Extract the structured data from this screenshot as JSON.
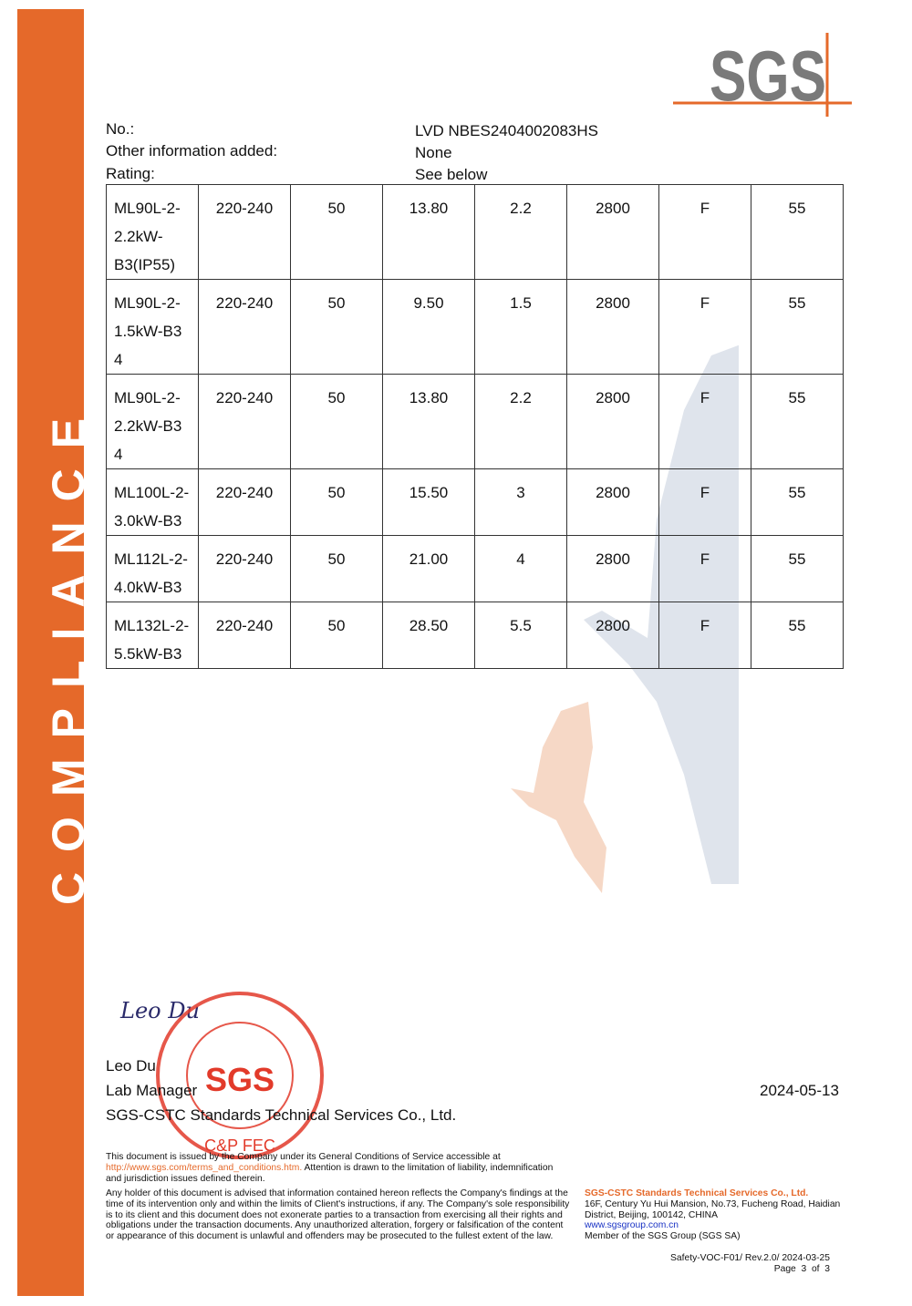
{
  "sidebar": {
    "text": "COMPLIANCE",
    "color": "#e5692a"
  },
  "logo": {
    "text": "SGS"
  },
  "header": {
    "no_label": "No.:",
    "no_value": "LVD NBES2404002083HS",
    "other_label": "Other information added:",
    "other_value": "None",
    "rating_label": "Rating:",
    "rating_value": "See below"
  },
  "table": {
    "rows": [
      [
        "ML90L-2-2.2kW-B3(IP55)",
        "220-240",
        "50",
        "13.80",
        "2.2",
        "2800",
        "F",
        "55"
      ],
      [
        "ML90L-2-1.5kW-B3 4",
        "220-240",
        "50",
        "9.50",
        "1.5",
        "2800",
        "F",
        "55"
      ],
      [
        "ML90L-2-2.2kW-B3 4",
        "220-240",
        "50",
        "13.80",
        "2.2",
        "2800",
        "F",
        "55"
      ],
      [
        "ML100L-2-3.0kW-B3",
        "220-240",
        "50",
        "15.50",
        "3",
        "2800",
        "F",
        "55"
      ],
      [
        "ML112L-2-4.0kW-B3",
        "220-240",
        "50",
        "21.00",
        "4",
        "2800",
        "F",
        "55"
      ],
      [
        "ML132L-2-5.5kW-B3",
        "220-240",
        "50",
        "28.50",
        "5.5",
        "2800",
        "F",
        "55"
      ]
    ]
  },
  "signature": {
    "handwriting": "Leo Du",
    "name": "Leo Du",
    "title": "Lab Manager",
    "company": "SGS-CSTC Standards Technical Services Co., Ltd.",
    "date": "2024-05-13"
  },
  "stamp": {
    "text": "SGS-CSTC Standards Technical Services Co., Ltd. C&P FEC SGS"
  },
  "footer": {
    "p1_a": "This document is issued by the Company under its General Conditions of Service accessible at",
    "p1_link": "http://www.sgs.com/terms_and_conditions.htm.",
    "p1_b": " Attention is drawn to the limitation of liability, indemnification and jurisdiction issues defined therein.",
    "p2": "Any holder of this document is advised that information contained hereon reflects the Company's findings at the time of its intervention only and within the limits of Client's instructions, if any. The Company's sole responsibility is to its client and this document does not exonerate parties to a transaction from exercising all their rights and obligations under the transaction documents. Any unauthorized alteration, forgery or falsification of the content or appearance of this document is unlawful and offenders may be prosecuted to the fullest extent of the law.",
    "company": "SGS-CSTC Standards Technical Services Co., Ltd.",
    "address": "16F, Century Yu Hui Mansion, No.73, Fucheng Road, Haidian District, Beijing, 100142, CHINA",
    "website": "www.sgsgroup.com.cn",
    "member": "Member of the SGS Group (SGS SA)",
    "form": "Safety-VOC-F01/ Rev.2.0/ 2024-03-25",
    "page": "Page  3  of  3"
  }
}
